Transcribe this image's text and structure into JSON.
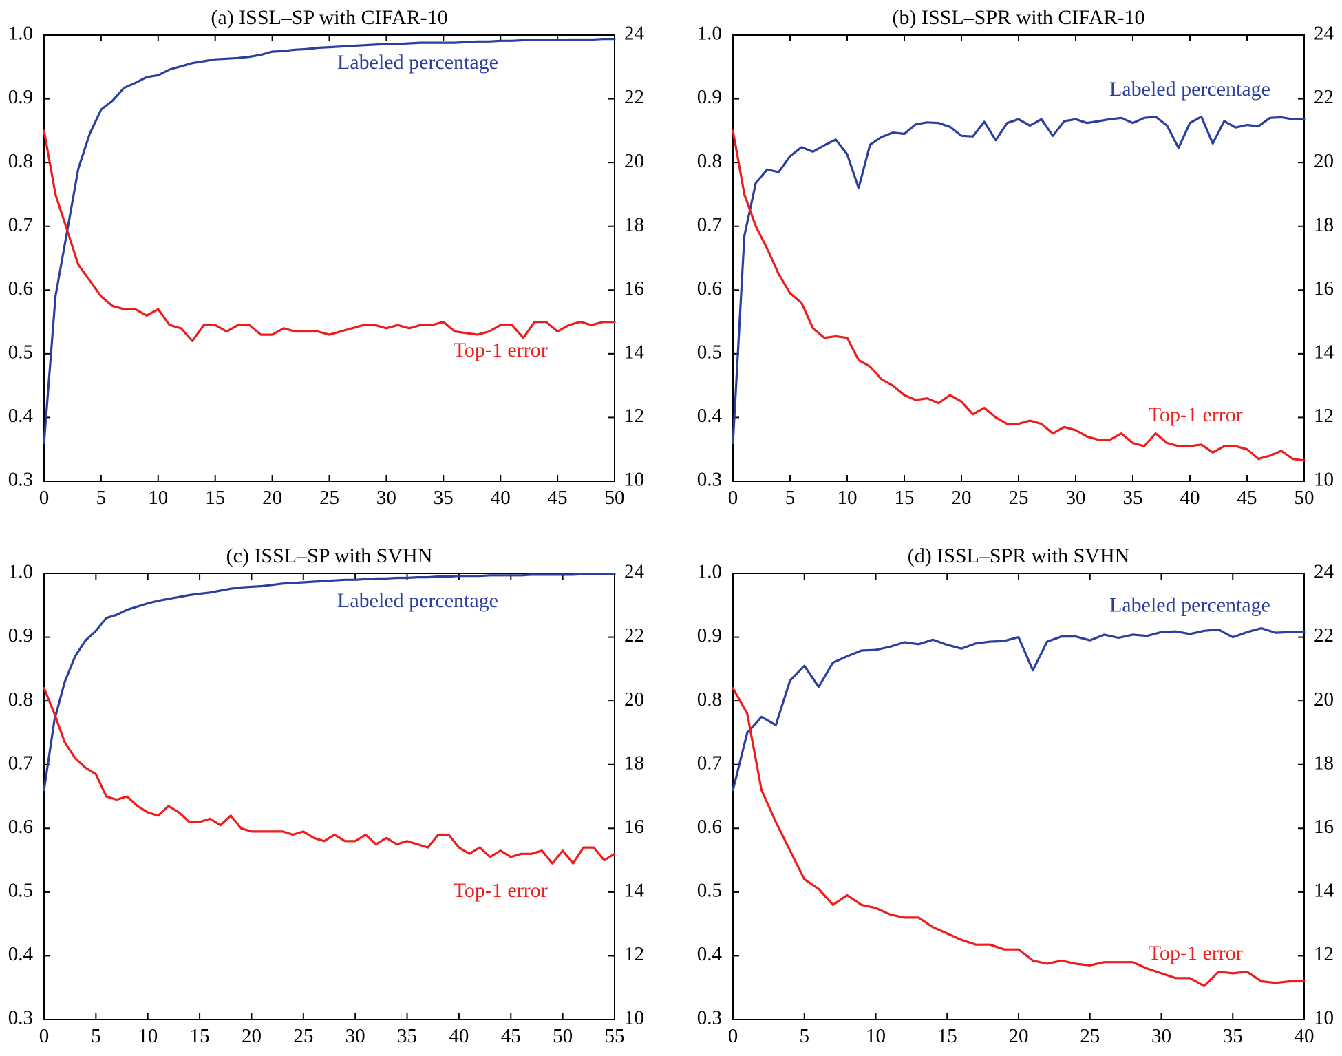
{
  "colors": {
    "labeled": "#2b3f9e",
    "error": "#ee1c1c",
    "axis": "#000000"
  },
  "chart_data": [
    {
      "type": "line",
      "title": "(a) ISSL–SP with CIFAR-10",
      "xlim": [
        0,
        50
      ],
      "xticks": [
        0,
        5,
        10,
        15,
        20,
        25,
        30,
        35,
        40,
        45,
        50
      ],
      "ylim_left": [
        0.3,
        1.0
      ],
      "yticks_left": [
        "0.3",
        "0.4",
        "0.5",
        "0.6",
        "0.7",
        "0.8",
        "0.9",
        "1.0"
      ],
      "ylim_right": [
        10,
        24
      ],
      "yticks_right": [
        "10",
        "12",
        "14",
        "16",
        "18",
        "20",
        "22",
        "24"
      ],
      "series": [
        {
          "name": "Labeled percentage",
          "axis": "left",
          "values": [
            0.36,
            0.59,
            0.69,
            0.79,
            0.845,
            0.883,
            0.897,
            0.917,
            0.925,
            0.934,
            0.937,
            0.946,
            0.951,
            0.956,
            0.959,
            0.962,
            0.963,
            0.964,
            0.966,
            0.969,
            0.974,
            0.975,
            0.977,
            0.978,
            0.98,
            0.981,
            0.982,
            0.983,
            0.984,
            0.985,
            0.986,
            0.986,
            0.987,
            0.988,
            0.988,
            0.988,
            0.988,
            0.989,
            0.99,
            0.99,
            0.991,
            0.991,
            0.992,
            0.992,
            0.992,
            0.992,
            0.993,
            0.993,
            0.993,
            0.994,
            0.994
          ]
        },
        {
          "name": "Top-1 error",
          "axis": "right",
          "values": [
            21.0,
            19.0,
            17.9,
            16.8,
            16.3,
            15.8,
            15.5,
            15.4,
            15.4,
            15.2,
            15.4,
            14.9,
            14.8,
            14.4,
            14.9,
            14.9,
            14.7,
            14.9,
            14.9,
            14.6,
            14.6,
            14.8,
            14.7,
            14.7,
            14.7,
            14.6,
            14.7,
            14.8,
            14.9,
            14.9,
            14.8,
            14.9,
            14.8,
            14.9,
            14.9,
            15.0,
            14.7,
            14.65,
            14.6,
            14.7,
            14.9,
            14.9,
            14.5,
            15.0,
            15.0,
            14.7,
            14.9,
            15.0,
            14.9,
            15.0,
            15.0
          ]
        }
      ],
      "annotations": {
        "labeled": "Labeled percentage",
        "error": "Top-1 error"
      }
    },
    {
      "type": "line",
      "title": "(b) ISSL–SPR with CIFAR-10",
      "xlim": [
        0,
        50
      ],
      "xticks": [
        0,
        5,
        10,
        15,
        20,
        25,
        30,
        35,
        40,
        45,
        50
      ],
      "ylim_left": [
        0.3,
        1.0
      ],
      "yticks_left": [
        "0.3",
        "0.4",
        "0.5",
        "0.6",
        "0.7",
        "0.8",
        "0.9",
        "1.0"
      ],
      "ylim_right": [
        10,
        24
      ],
      "yticks_right": [
        "10",
        "12",
        "14",
        "16",
        "18",
        "20",
        "22",
        "24"
      ],
      "series": [
        {
          "name": "Labeled percentage",
          "axis": "left",
          "values": [
            0.36,
            0.685,
            0.768,
            0.789,
            0.785,
            0.81,
            0.824,
            0.817,
            0.827,
            0.836,
            0.813,
            0.76,
            0.828,
            0.84,
            0.847,
            0.845,
            0.86,
            0.863,
            0.862,
            0.856,
            0.842,
            0.841,
            0.864,
            0.835,
            0.862,
            0.868,
            0.858,
            0.868,
            0.842,
            0.865,
            0.868,
            0.862,
            0.865,
            0.868,
            0.87,
            0.862,
            0.87,
            0.872,
            0.858,
            0.823,
            0.862,
            0.872,
            0.83,
            0.865,
            0.855,
            0.859,
            0.857,
            0.87,
            0.871,
            0.868,
            0.868
          ]
        },
        {
          "name": "Top-1 error",
          "axis": "right",
          "values": [
            21.0,
            19.0,
            18.0,
            17.3,
            16.5,
            15.9,
            15.6,
            14.8,
            14.5,
            14.55,
            14.5,
            13.8,
            13.6,
            13.2,
            13.0,
            12.7,
            12.55,
            12.6,
            12.45,
            12.7,
            12.5,
            12.1,
            12.3,
            12.0,
            11.8,
            11.8,
            11.9,
            11.8,
            11.5,
            11.7,
            11.6,
            11.4,
            11.3,
            11.3,
            11.5,
            11.2,
            11.1,
            11.5,
            11.2,
            11.1,
            11.1,
            11.15,
            10.9,
            11.1,
            11.1,
            11.0,
            10.7,
            10.8,
            10.95,
            10.7,
            10.65
          ]
        }
      ],
      "annotations": {
        "labeled": "Labeled percentage",
        "error": "Top-1 error"
      }
    },
    {
      "type": "line",
      "title": "(c) ISSL–SP with SVHN",
      "xlim": [
        0,
        55
      ],
      "xticks": [
        0,
        5,
        10,
        15,
        20,
        25,
        30,
        35,
        40,
        45,
        50,
        55
      ],
      "ylim_left": [
        0.3,
        1.0
      ],
      "yticks_left": [
        "0.3",
        "0.4",
        "0.5",
        "0.6",
        "0.7",
        "0.8",
        "0.9",
        "1.0"
      ],
      "ylim_right": [
        10,
        24
      ],
      "yticks_right": [
        "10",
        "12",
        "14",
        "16",
        "18",
        "20",
        "22",
        "24"
      ],
      "series": [
        {
          "name": "Labeled percentage",
          "axis": "left",
          "values": [
            0.66,
            0.77,
            0.83,
            0.87,
            0.895,
            0.91,
            0.93,
            0.935,
            0.943,
            0.948,
            0.953,
            0.957,
            0.96,
            0.963,
            0.966,
            0.968,
            0.97,
            0.973,
            0.976,
            0.978,
            0.979,
            0.98,
            0.982,
            0.984,
            0.985,
            0.986,
            0.987,
            0.988,
            0.989,
            0.99,
            0.99,
            0.991,
            0.992,
            0.992,
            0.993,
            0.993,
            0.994,
            0.994,
            0.995,
            0.995,
            0.996,
            0.996,
            0.996,
            0.997,
            0.997,
            0.997,
            0.997,
            0.998,
            0.998,
            0.998,
            0.998,
            0.998,
            0.999,
            0.999,
            0.999,
            0.999
          ]
        },
        {
          "name": "Top-1 error",
          "axis": "right",
          "values": [
            20.4,
            19.6,
            18.7,
            18.2,
            17.9,
            17.7,
            17.0,
            16.9,
            17.0,
            16.7,
            16.5,
            16.4,
            16.7,
            16.5,
            16.2,
            16.2,
            16.3,
            16.1,
            16.4,
            16.0,
            15.9,
            15.9,
            15.9,
            15.9,
            15.8,
            15.9,
            15.7,
            15.6,
            15.8,
            15.6,
            15.6,
            15.8,
            15.5,
            15.7,
            15.5,
            15.6,
            15.5,
            15.4,
            15.8,
            15.8,
            15.4,
            15.2,
            15.4,
            15.1,
            15.3,
            15.1,
            15.2,
            15.2,
            15.3,
            14.9,
            15.3,
            14.9,
            15.4,
            15.4,
            15.0,
            15.2
          ]
        }
      ],
      "annotations": {
        "labeled": "Labeled percentage",
        "error": "Top-1 error"
      }
    },
    {
      "type": "line",
      "title": "(d) ISSL–SPR with SVHN",
      "xlim": [
        0,
        40
      ],
      "xticks": [
        0,
        5,
        10,
        15,
        20,
        25,
        30,
        35,
        40
      ],
      "ylim_left": [
        0.3,
        1.0
      ],
      "yticks_left": [
        "0.3",
        "0.4",
        "0.5",
        "0.6",
        "0.7",
        "0.8",
        "0.9",
        "1.0"
      ],
      "ylim_right": [
        10,
        24
      ],
      "yticks_right": [
        "10",
        "12",
        "14",
        "16",
        "18",
        "20",
        "22",
        "24"
      ],
      "series": [
        {
          "name": "Labeled percentage",
          "axis": "left",
          "values": [
            0.66,
            0.75,
            0.775,
            0.762,
            0.832,
            0.855,
            0.822,
            0.86,
            0.87,
            0.879,
            0.88,
            0.885,
            0.892,
            0.889,
            0.896,
            0.888,
            0.882,
            0.89,
            0.893,
            0.894,
            0.9,
            0.848,
            0.893,
            0.901,
            0.901,
            0.895,
            0.904,
            0.899,
            0.904,
            0.902,
            0.908,
            0.909,
            0.905,
            0.91,
            0.912,
            0.9,
            0.908,
            0.914,
            0.907,
            0.908,
            0.908
          ]
        },
        {
          "name": "Top-1 error",
          "axis": "right",
          "values": [
            20.4,
            19.6,
            17.2,
            16.2,
            15.3,
            14.4,
            14.1,
            13.6,
            13.9,
            13.6,
            13.5,
            13.3,
            13.2,
            13.2,
            12.9,
            12.7,
            12.5,
            12.35,
            12.35,
            12.2,
            12.2,
            11.85,
            11.75,
            11.85,
            11.75,
            11.7,
            11.8,
            11.8,
            11.8,
            11.6,
            11.45,
            11.3,
            11.3,
            11.05,
            11.5,
            11.45,
            11.5,
            11.2,
            11.15,
            11.2,
            11.2
          ]
        }
      ],
      "annotations": {
        "labeled": "Labeled percentage",
        "error": "Top-1 error"
      }
    }
  ]
}
